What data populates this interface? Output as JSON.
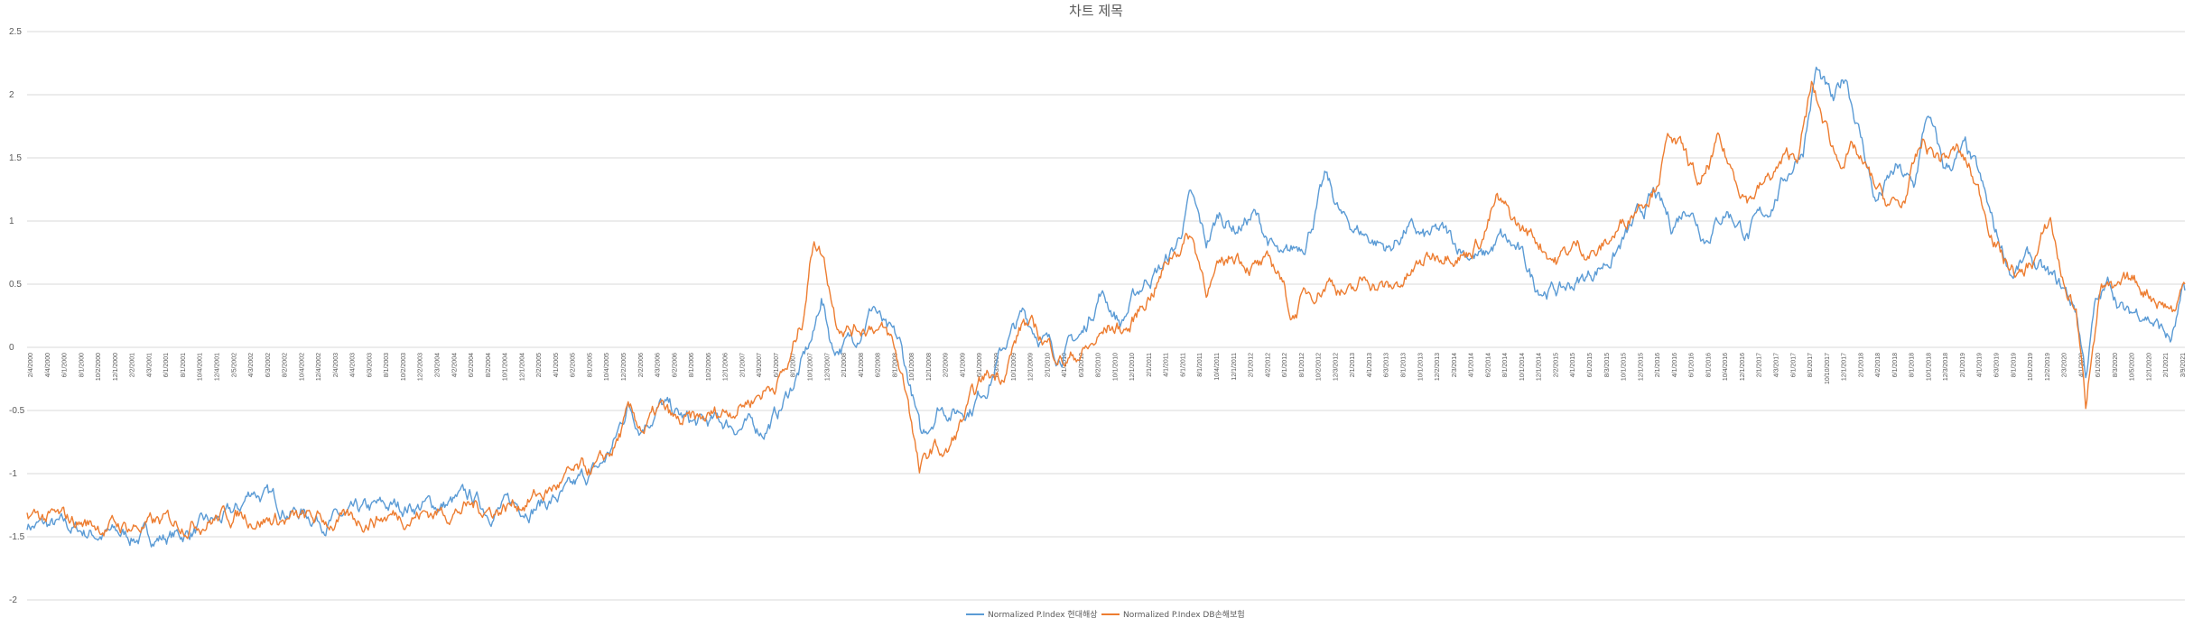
{
  "chart_data": {
    "type": "line",
    "title": "차트 제목",
    "xlabel": "",
    "ylabel": "",
    "ylim": [
      -2,
      2.5
    ],
    "y_ticks": [
      "-2",
      "-1.5",
      "-1",
      "-0.5",
      "0",
      "0.5",
      "1",
      "1.5",
      "2",
      "2.5"
    ],
    "grid": true,
    "legend_position": "bottom",
    "x_tick_labels": [
      "2/4/2000",
      "4/4/2000",
      "6/1/2000",
      "8/1/2000",
      "10/2/2000",
      "12/1/2000",
      "2/2/2001",
      "4/3/2001",
      "6/1/2001",
      "8/1/2001",
      "10/4/2001",
      "12/4/2001",
      "2/5/2002",
      "4/3/2002",
      "6/3/2002",
      "8/2/2002",
      "10/4/2002",
      "12/4/2002",
      "2/4/2003",
      "4/4/2003",
      "6/3/2003",
      "8/1/2003",
      "10/2/2003",
      "12/2/2003",
      "2/3/2004",
      "4/2/2004",
      "6/2/2004",
      "8/2/2004",
      "10/1/2004",
      "12/1/2004",
      "2/2/2005",
      "4/1/2005",
      "6/2/2005",
      "8/1/2005",
      "10/4/2005",
      "12/2/2005",
      "2/2/2006",
      "4/3/2006",
      "6/2/2006",
      "8/1/2006",
      "10/2/2006",
      "12/1/2006",
      "2/1/2007",
      "4/3/2007",
      "6/1/2007",
      "8/1/2007",
      "10/1/2007",
      "12/3/2007",
      "2/1/2008",
      "4/1/2008",
      "6/2/2008",
      "8/1/2008",
      "10/1/2008",
      "12/1/2008",
      "2/2/2009",
      "4/1/2009",
      "6/1/2009",
      "8/3/2009",
      "10/1/2009",
      "12/1/2009",
      "2/1/2010",
      "4/1/2010",
      "6/3/2010",
      "8/2/2010",
      "10/1/2010",
      "12/1/2010",
      "2/1/2011",
      "4/1/2011",
      "6/1/2011",
      "8/1/2011",
      "10/4/2011",
      "12/1/2011",
      "2/1/2012",
      "4/2/2012",
      "6/1/2012",
      "8/1/2012",
      "10/2/2012",
      "12/3/2012",
      "2/1/2013",
      "4/1/2013",
      "6/3/2013",
      "8/1/2013",
      "10/1/2013",
      "12/2/2013",
      "2/3/2014",
      "4/1/2014",
      "6/2/2014",
      "8/1/2014",
      "10/1/2014",
      "12/1/2014",
      "2/2/2015",
      "4/1/2015",
      "6/1/2015",
      "8/3/2015",
      "10/1/2015",
      "12/1/2015",
      "2/1/2016",
      "4/1/2016",
      "6/1/2016",
      "8/1/2016",
      "10/4/2016",
      "12/1/2016",
      "2/1/2017",
      "4/3/2017",
      "6/1/2017",
      "8/1/2017",
      "10/10/2017",
      "12/1/2017",
      "2/1/2018",
      "4/2/2018",
      "6/1/2018",
      "8/1/2018",
      "10/1/2018",
      "12/3/2018",
      "2/1/2019",
      "4/1/2019",
      "6/3/2019",
      "8/1/2019",
      "10/1/2019",
      "12/2/2019",
      "2/3/2020",
      "4/1/2020",
      "6/1/2020",
      "8/3/2020",
      "10/5/2020",
      "12/1/2020",
      "2/1/2021",
      "3/9/2021"
    ],
    "x_range": [
      "2000-02-04",
      "2021-03-09"
    ],
    "series": [
      {
        "name": "Normalized P.Index 현대해상",
        "color": "#5b9bd5",
        "points": [
          [
            "2000-02-04",
            -1.4
          ],
          [
            "2000-06-01",
            -1.43
          ],
          [
            "2000-10-01",
            -1.47
          ],
          [
            "2001-01-15",
            -1.49
          ],
          [
            "2001-05-01",
            -1.5
          ],
          [
            "2001-08-01",
            -1.49
          ],
          [
            "2001-10-01",
            -1.44
          ],
          [
            "2002-01-15",
            -1.36
          ],
          [
            "2002-03-01",
            -1.3
          ],
          [
            "2002-04-20",
            -1.12
          ],
          [
            "2002-06-15",
            -1.2
          ],
          [
            "2002-09-01",
            -1.28
          ],
          [
            "2003-01-01",
            -1.36
          ],
          [
            "2003-04-01",
            -1.36
          ],
          [
            "2003-07-01",
            -1.29
          ],
          [
            "2003-11-01",
            -1.25
          ],
          [
            "2004-03-01",
            -1.25
          ],
          [
            "2004-06-15",
            -1.2
          ],
          [
            "2004-08-01",
            -1.28
          ],
          [
            "2004-12-01",
            -1.25
          ],
          [
            "2005-03-01",
            -1.22
          ],
          [
            "2005-06-01",
            -1.16
          ],
          [
            "2005-07-15",
            -1.05
          ],
          [
            "2005-09-15",
            -0.95
          ],
          [
            "2005-11-01",
            -0.76
          ],
          [
            "2005-12-20",
            -0.45
          ],
          [
            "2006-02-01",
            -0.6
          ],
          [
            "2006-04-15",
            -0.45
          ],
          [
            "2006-06-15",
            -0.55
          ],
          [
            "2006-08-15",
            -0.62
          ],
          [
            "2006-11-15",
            -0.6
          ],
          [
            "2007-02-01",
            -0.62
          ],
          [
            "2007-04-15",
            -0.65
          ],
          [
            "2007-06-15",
            -0.5
          ],
          [
            "2007-08-20",
            -0.2
          ],
          [
            "2007-10-15",
            0.1
          ],
          [
            "2007-11-10",
            0.4
          ],
          [
            "2007-12-20",
            0.0
          ],
          [
            "2008-03-01",
            0.05
          ],
          [
            "2008-05-15",
            0.35
          ],
          [
            "2008-07-01",
            0.1
          ],
          [
            "2008-08-15",
            0.0
          ],
          [
            "2008-10-01",
            -0.4
          ],
          [
            "2008-11-01",
            -0.75
          ],
          [
            "2009-01-01",
            -0.45
          ],
          [
            "2009-03-01",
            -0.5
          ],
          [
            "2009-05-01",
            -0.45
          ],
          [
            "2009-07-01",
            -0.25
          ],
          [
            "2009-09-01",
            0.05
          ],
          [
            "2009-11-01",
            0.25
          ],
          [
            "2010-01-01",
            0.1
          ],
          [
            "2010-03-01",
            -0.05
          ],
          [
            "2010-06-01",
            0.1
          ],
          [
            "2010-08-01",
            0.45
          ],
          [
            "2010-10-15",
            0.2
          ],
          [
            "2011-01-15",
            0.55
          ],
          [
            "2011-03-15",
            0.65
          ],
          [
            "2011-05-01",
            0.8
          ],
          [
            "2011-06-20",
            1.18
          ],
          [
            "2011-08-15",
            0.8
          ],
          [
            "2011-10-01",
            1.05
          ],
          [
            "2011-12-01",
            0.95
          ],
          [
            "2012-02-01",
            1.05
          ],
          [
            "2012-05-15",
            0.65
          ],
          [
            "2012-08-01",
            0.85
          ],
          [
            "2012-10-15",
            1.33
          ],
          [
            "2012-12-15",
            1.0
          ],
          [
            "2013-03-01",
            0.9
          ],
          [
            "2013-06-01",
            0.78
          ],
          [
            "2013-08-01",
            0.95
          ],
          [
            "2013-10-01",
            0.85
          ],
          [
            "2013-12-01",
            0.9
          ],
          [
            "2014-02-01",
            0.8
          ],
          [
            "2014-05-01",
            0.7
          ],
          [
            "2014-07-01",
            0.85
          ],
          [
            "2014-09-01",
            0.75
          ],
          [
            "2014-11-01",
            0.5
          ],
          [
            "2015-02-01",
            0.45
          ],
          [
            "2015-05-01",
            0.55
          ],
          [
            "2015-08-15",
            0.75
          ],
          [
            "2015-11-01",
            1.0
          ],
          [
            "2016-01-01",
            1.2
          ],
          [
            "2016-03-01",
            0.95
          ],
          [
            "2016-05-01",
            1.15
          ],
          [
            "2016-07-01",
            0.9
          ],
          [
            "2016-09-15",
            1.1
          ],
          [
            "2016-12-01",
            0.9
          ],
          [
            "2017-02-01",
            1.05
          ],
          [
            "2017-04-01",
            1.3
          ],
          [
            "2017-06-15",
            1.6
          ],
          [
            "2017-08-01",
            2.2
          ],
          [
            "2017-10-01",
            1.9
          ],
          [
            "2017-11-15",
            2.15
          ],
          [
            "2018-01-15",
            1.6
          ],
          [
            "2018-03-01",
            1.15
          ],
          [
            "2018-05-15",
            1.4
          ],
          [
            "2018-07-15",
            1.25
          ],
          [
            "2018-09-01",
            1.85
          ],
          [
            "2018-11-01",
            1.4
          ],
          [
            "2019-01-15",
            1.55
          ],
          [
            "2019-03-01",
            1.35
          ],
          [
            "2019-05-01",
            0.9
          ],
          [
            "2019-07-01",
            0.6
          ],
          [
            "2019-09-01",
            0.7
          ],
          [
            "2019-11-01",
            0.55
          ],
          [
            "2020-01-01",
            0.45
          ],
          [
            "2020-02-15",
            0.3
          ],
          [
            "2020-03-20",
            -0.2
          ],
          [
            "2020-04-20",
            0.3
          ],
          [
            "2020-06-15",
            0.5
          ],
          [
            "2020-08-15",
            0.25
          ],
          [
            "2020-10-15",
            0.3
          ],
          [
            "2020-12-15",
            0.15
          ],
          [
            "2021-01-20",
            0.05
          ],
          [
            "2021-03-09",
            0.45
          ]
        ]
      },
      {
        "name": "Normalized P.Index DB손해보험",
        "color": "#ed7d31",
        "points": [
          [
            "2000-02-04",
            -1.32
          ],
          [
            "2000-06-01",
            -1.37
          ],
          [
            "2000-10-01",
            -1.4
          ],
          [
            "2001-02-01",
            -1.42
          ],
          [
            "2001-05-01",
            -1.41
          ],
          [
            "2001-08-01",
            -1.38
          ],
          [
            "2001-11-01",
            -1.35
          ],
          [
            "2002-03-01",
            -1.32
          ],
          [
            "2002-06-01",
            -1.35
          ],
          [
            "2002-09-01",
            -1.37
          ],
          [
            "2003-01-01",
            -1.38
          ],
          [
            "2003-04-01",
            -1.39
          ],
          [
            "2003-07-01",
            -1.34
          ],
          [
            "2003-11-01",
            -1.32
          ],
          [
            "2004-03-01",
            -1.3
          ],
          [
            "2004-06-15",
            -1.26
          ],
          [
            "2004-09-01",
            -1.28
          ],
          [
            "2004-12-01",
            -1.22
          ],
          [
            "2005-03-01",
            -1.15
          ],
          [
            "2005-05-15",
            -1.05
          ],
          [
            "2005-07-15",
            -1.0
          ],
          [
            "2005-09-15",
            -0.95
          ],
          [
            "2005-11-01",
            -0.8
          ],
          [
            "2005-12-20",
            -0.55
          ],
          [
            "2006-02-15",
            -0.65
          ],
          [
            "2006-04-15",
            -0.5
          ],
          [
            "2006-06-15",
            -0.62
          ],
          [
            "2006-09-01",
            -0.6
          ],
          [
            "2006-12-01",
            -0.5
          ],
          [
            "2007-03-01",
            -0.4
          ],
          [
            "2007-05-15",
            -0.3
          ],
          [
            "2007-07-15",
            -0.15
          ],
          [
            "2007-09-01",
            0.2
          ],
          [
            "2007-10-15",
            0.9
          ],
          [
            "2007-11-15",
            0.75
          ],
          [
            "2008-01-01",
            0.25
          ],
          [
            "2008-03-01",
            0.15
          ],
          [
            "2008-05-15",
            0.2
          ],
          [
            "2008-07-15",
            0.05
          ],
          [
            "2008-09-15",
            -0.4
          ],
          [
            "2008-10-25",
            -1.0
          ],
          [
            "2008-12-15",
            -0.8
          ],
          [
            "2009-02-01",
            -0.85
          ],
          [
            "2009-04-15",
            -0.5
          ],
          [
            "2009-06-15",
            -0.25
          ],
          [
            "2009-08-15",
            -0.2
          ],
          [
            "2009-11-01",
            0.2
          ],
          [
            "2010-01-15",
            0.05
          ],
          [
            "2010-04-01",
            -0.1
          ],
          [
            "2010-07-01",
            0.0
          ],
          [
            "2010-09-01",
            0.15
          ],
          [
            "2010-11-15",
            0.15
          ],
          [
            "2011-01-15",
            0.4
          ],
          [
            "2011-03-01",
            0.55
          ],
          [
            "2011-04-15",
            0.75
          ],
          [
            "2011-06-20",
            0.9
          ],
          [
            "2011-08-15",
            0.5
          ],
          [
            "2011-10-01",
            0.6
          ],
          [
            "2011-12-01",
            0.75
          ],
          [
            "2012-02-01",
            0.65
          ],
          [
            "2012-05-01",
            0.6
          ],
          [
            "2012-06-15",
            0.25
          ],
          [
            "2012-08-01",
            0.4
          ],
          [
            "2012-11-01",
            0.55
          ],
          [
            "2013-01-15",
            0.4
          ],
          [
            "2013-03-15",
            0.55
          ],
          [
            "2013-06-01",
            0.45
          ],
          [
            "2013-08-01",
            0.55
          ],
          [
            "2013-10-15",
            0.7
          ],
          [
            "2014-01-01",
            0.8
          ],
          [
            "2014-03-01",
            0.75
          ],
          [
            "2014-05-01",
            0.9
          ],
          [
            "2014-06-15",
            1.15
          ],
          [
            "2014-09-01",
            0.95
          ],
          [
            "2014-11-15",
            0.85
          ],
          [
            "2015-01-15",
            0.7
          ],
          [
            "2015-04-01",
            0.8
          ],
          [
            "2015-06-15",
            0.75
          ],
          [
            "2015-09-01",
            0.95
          ],
          [
            "2015-11-01",
            1.15
          ],
          [
            "2016-01-01",
            1.3
          ],
          [
            "2016-03-01",
            1.7
          ],
          [
            "2016-05-01",
            1.45
          ],
          [
            "2016-06-15",
            1.25
          ],
          [
            "2016-08-15",
            1.6
          ],
          [
            "2016-10-01",
            1.4
          ],
          [
            "2016-12-01",
            1.2
          ],
          [
            "2017-02-01",
            1.3
          ],
          [
            "2017-04-01",
            1.45
          ],
          [
            "2017-06-01",
            1.55
          ],
          [
            "2017-07-15",
            2.05
          ],
          [
            "2017-09-01",
            1.75
          ],
          [
            "2017-10-15",
            1.5
          ],
          [
            "2017-12-15",
            1.55
          ],
          [
            "2018-02-01",
            1.35
          ],
          [
            "2018-04-01",
            1.15
          ],
          [
            "2018-06-01",
            1.1
          ],
          [
            "2018-08-15",
            1.6
          ],
          [
            "2018-10-15",
            1.5
          ],
          [
            "2018-12-15",
            1.55
          ],
          [
            "2019-02-01",
            1.4
          ],
          [
            "2019-04-01",
            1.05
          ],
          [
            "2019-06-01",
            0.7
          ],
          [
            "2019-08-01",
            0.55
          ],
          [
            "2019-10-01",
            0.75
          ],
          [
            "2019-11-15",
            1.0
          ],
          [
            "2020-01-01",
            0.5
          ],
          [
            "2020-02-15",
            0.3
          ],
          [
            "2020-03-20",
            -0.48
          ],
          [
            "2020-04-15",
            0.1
          ],
          [
            "2020-05-15",
            0.55
          ],
          [
            "2020-07-01",
            0.4
          ],
          [
            "2020-09-01",
            0.5
          ],
          [
            "2020-11-01",
            0.45
          ],
          [
            "2021-01-01",
            0.35
          ],
          [
            "2021-02-01",
            0.3
          ],
          [
            "2021-03-09",
            0.5
          ]
        ]
      }
    ]
  }
}
